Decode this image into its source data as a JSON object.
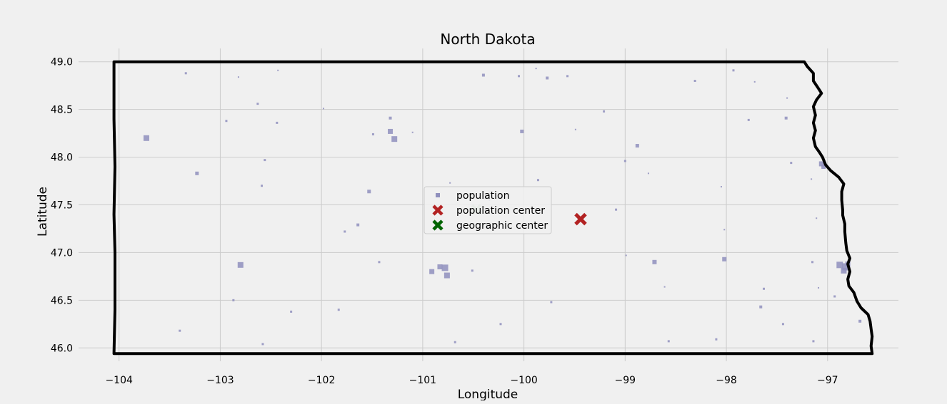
{
  "chart_data": {
    "type": "scatter",
    "title": "North Dakota",
    "xlabel": "Longitude",
    "ylabel": "Latitude",
    "xlim": [
      -104.4,
      -96.3
    ],
    "ylim": [
      45.86,
      49.14
    ],
    "xticks": [
      -104,
      -103,
      -102,
      -101,
      -100,
      -99,
      -98,
      -97
    ],
    "xtick_labels": [
      "−104",
      "−103",
      "−102",
      "−101",
      "−100",
      "−99",
      "−98",
      "−97"
    ],
    "yticks": [
      46.0,
      46.5,
      47.0,
      47.5,
      48.0,
      48.5,
      49.0
    ],
    "ytick_labels": [
      "46.0",
      "46.5",
      "47.0",
      "47.5",
      "48.0",
      "48.5",
      "49.0"
    ],
    "grid": true,
    "legend_position": "center",
    "colors": {
      "background": "#f0f0f0",
      "grid": "#cbcbcb",
      "population": "#8f8fbd",
      "population_center": "#b22222",
      "geographic_center": "#006400",
      "border": "#000000"
    },
    "series": [
      {
        "name": "population",
        "marker": "square",
        "points": [
          [
            -103.73,
            48.2,
            8
          ],
          [
            -103.23,
            47.83,
            5
          ],
          [
            -102.8,
            46.87,
            8
          ],
          [
            -101.32,
            48.27,
            7
          ],
          [
            -101.28,
            48.19,
            8
          ],
          [
            -101.53,
            47.64,
            5
          ],
          [
            -100.78,
            46.84,
            9
          ],
          [
            -100.83,
            46.85,
            7
          ],
          [
            -100.76,
            46.76,
            8
          ],
          [
            -100.91,
            46.8,
            7
          ],
          [
            -100.02,
            48.27,
            5
          ],
          [
            -98.88,
            48.12,
            5
          ],
          [
            -98.71,
            46.9,
            6
          ],
          [
            -98.02,
            46.93,
            6
          ],
          [
            -96.88,
            46.87,
            9
          ],
          [
            -96.82,
            46.85,
            10
          ],
          [
            -96.84,
            46.81,
            8
          ],
          [
            -96.8,
            46.88,
            7
          ],
          [
            -97.06,
            47.93,
            7
          ],
          [
            -97.04,
            47.9,
            6
          ],
          [
            -103.34,
            48.88,
            3
          ],
          [
            -102.44,
            48.36,
            3
          ],
          [
            -102.63,
            48.56,
            3
          ],
          [
            -102.94,
            48.38,
            3
          ],
          [
            -102.56,
            47.97,
            3
          ],
          [
            -102.59,
            47.7,
            3
          ],
          [
            -101.64,
            47.29,
            4
          ],
          [
            -101.77,
            47.22,
            3
          ],
          [
            -100.4,
            48.86,
            4
          ],
          [
            -99.77,
            48.83,
            4
          ],
          [
            -99.57,
            48.85,
            3
          ],
          [
            -100.05,
            48.85,
            3
          ],
          [
            -101.32,
            48.41,
            4
          ],
          [
            -99.86,
            47.76,
            3
          ],
          [
            -99.21,
            48.48,
            3
          ],
          [
            -98.31,
            48.8,
            3
          ],
          [
            -97.93,
            48.91,
            3
          ],
          [
            -97.78,
            48.39,
            3
          ],
          [
            -97.41,
            48.41,
            4
          ],
          [
            -97.36,
            47.94,
            3
          ],
          [
            -98.05,
            47.69,
            2
          ],
          [
            -102.87,
            46.5,
            3
          ],
          [
            -103.4,
            46.18,
            3
          ],
          [
            -102.58,
            46.04,
            3
          ],
          [
            -100.23,
            46.25,
            3
          ],
          [
            -100.51,
            46.81,
            3
          ],
          [
            -99.73,
            46.48,
            3
          ],
          [
            -98.57,
            46.07,
            3
          ],
          [
            -98.1,
            46.09,
            3
          ],
          [
            -97.66,
            46.43,
            4
          ],
          [
            -97.63,
            46.62,
            3
          ],
          [
            -97.44,
            46.25,
            3
          ],
          [
            -97.14,
            46.07,
            3
          ],
          [
            -96.68,
            46.28,
            4
          ],
          [
            -96.93,
            46.54,
            3
          ],
          [
            -97.15,
            46.9,
            3
          ],
          [
            -101.43,
            46.9,
            3
          ],
          [
            -102.3,
            46.38,
            3
          ],
          [
            -101.83,
            46.4,
            3
          ],
          [
            -100.68,
            46.06,
            3
          ],
          [
            -99.88,
            48.93,
            2
          ],
          [
            -102.82,
            48.84,
            2
          ],
          [
            -102.43,
            48.91,
            2
          ],
          [
            -101.98,
            48.51,
            2
          ],
          [
            -101.49,
            48.24,
            3
          ],
          [
            -101.1,
            48.26,
            2
          ],
          [
            -100.34,
            47.55,
            2
          ],
          [
            -100.73,
            47.73,
            2
          ],
          [
            -99.49,
            48.29,
            2
          ],
          [
            -98.77,
            47.83,
            2
          ],
          [
            -99.0,
            47.96,
            3
          ],
          [
            -99.09,
            47.45,
            3
          ],
          [
            -98.99,
            46.97,
            2
          ],
          [
            -98.61,
            46.64,
            2
          ],
          [
            -98.02,
            47.24,
            2
          ],
          [
            -97.72,
            48.79,
            2
          ],
          [
            -97.4,
            48.62,
            2
          ],
          [
            -97.16,
            47.77,
            2
          ],
          [
            -97.11,
            47.36,
            2
          ],
          [
            -97.09,
            46.63,
            2
          ]
        ]
      },
      {
        "name": "population center",
        "marker": "x",
        "points": [
          [
            -99.44,
            47.35
          ]
        ]
      },
      {
        "name": "geographic center",
        "marker": "x",
        "points": [
          [
            -100.47,
            47.45
          ]
        ]
      }
    ],
    "border": [
      [
        -104.05,
        49.0
      ],
      [
        -97.23,
        49.0
      ],
      [
        -97.2,
        48.95
      ],
      [
        -97.14,
        48.88
      ],
      [
        -97.14,
        48.8
      ],
      [
        -97.09,
        48.72
      ],
      [
        -97.06,
        48.67
      ],
      [
        -97.11,
        48.6
      ],
      [
        -97.14,
        48.53
      ],
      [
        -97.12,
        48.44
      ],
      [
        -97.14,
        48.36
      ],
      [
        -97.12,
        48.28
      ],
      [
        -97.14,
        48.2
      ],
      [
        -97.12,
        48.11
      ],
      [
        -97.08,
        48.05
      ],
      [
        -97.05,
        48.0
      ],
      [
        -97.02,
        47.92
      ],
      [
        -96.97,
        47.86
      ],
      [
        -96.89,
        47.79
      ],
      [
        -96.84,
        47.72
      ],
      [
        -96.86,
        47.64
      ],
      [
        -96.86,
        47.55
      ],
      [
        -96.85,
        47.44
      ],
      [
        -96.85,
        47.39
      ],
      [
        -96.83,
        47.3
      ],
      [
        -96.83,
        47.22
      ],
      [
        -96.82,
        47.1
      ],
      [
        -96.81,
        47.02
      ],
      [
        -96.78,
        46.94
      ],
      [
        -96.8,
        46.88
      ],
      [
        -96.78,
        46.8
      ],
      [
        -96.8,
        46.72
      ],
      [
        -96.79,
        46.65
      ],
      [
        -96.74,
        46.58
      ],
      [
        -96.71,
        46.49
      ],
      [
        -96.67,
        46.42
      ],
      [
        -96.6,
        46.35
      ],
      [
        -96.58,
        46.28
      ],
      [
        -96.57,
        46.2
      ],
      [
        -96.56,
        46.12
      ],
      [
        -96.57,
        46.02
      ],
      [
        -96.56,
        45.94
      ],
      [
        -104.05,
        45.94
      ],
      [
        -104.04,
        46.4
      ],
      [
        -104.04,
        47.0
      ],
      [
        -104.05,
        47.4
      ],
      [
        -104.04,
        47.9
      ],
      [
        -104.05,
        48.4
      ],
      [
        -104.05,
        49.0
      ]
    ]
  }
}
